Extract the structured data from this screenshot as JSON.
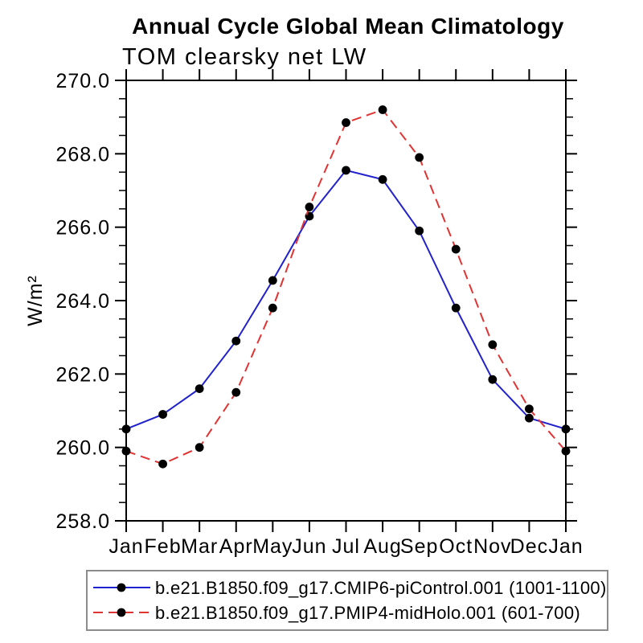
{
  "page": {
    "background": "#ffffff",
    "title": "Annual Cycle Global Mean Climatology",
    "subtitle": "TOM clearsky net LW"
  },
  "chart_data": {
    "type": "line",
    "title": "Annual Cycle Global Mean Climatology",
    "subtitle": "TOM clearsky net LW",
    "xlabel": "",
    "ylabel": "W/m²",
    "categories": [
      "Jan",
      "Feb",
      "Mar",
      "Apr",
      "May",
      "Jun",
      "Jul",
      "Aug",
      "Sep",
      "Oct",
      "Nov",
      "Dec",
      "Jan"
    ],
    "ylim": [
      258.0,
      270.0
    ],
    "ytick_major_interval": 2.0,
    "ytick_minor_interval": 0.5,
    "ytick_labels": [
      "258.0",
      "260.0",
      "262.0",
      "264.0",
      "266.0",
      "268.0",
      "270.0"
    ],
    "grid": false,
    "frame": "box-with-outward-ticks",
    "legend_position": "bottom",
    "axis_color": "#000000",
    "marker_shape": "filled-circle",
    "marker_color": "#000000",
    "series": [
      {
        "name": "b.e21.B1850.f09_g17.CMIP6-piControl.001 (1001-1100)",
        "color": "#2121cd",
        "line_style": "solid",
        "values": [
          260.5,
          260.9,
          261.6,
          262.9,
          264.55,
          266.3,
          267.55,
          267.3,
          265.9,
          263.8,
          261.85,
          260.8,
          260.5
        ]
      },
      {
        "name": "b.e21.B1850.f09_g17.PMIP4-midHolo.001 (601-700)",
        "color": "#e23333",
        "line_style": "dashed",
        "values": [
          259.9,
          259.55,
          260.0,
          261.5,
          263.8,
          266.55,
          268.85,
          269.2,
          267.9,
          265.4,
          262.8,
          261.05,
          259.9
        ]
      }
    ]
  }
}
